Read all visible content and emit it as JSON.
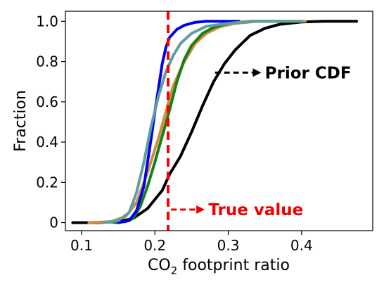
{
  "chart_data": {
    "type": "line",
    "title": "",
    "xlabel": {
      "prefix": "CO",
      "sub": "2",
      "suffix": " footprint ratio"
    },
    "ylabel": "Fraction",
    "xlim": [
      0.078,
      0.497
    ],
    "ylim": [
      -0.04,
      1.05
    ],
    "grid": false,
    "x_ticks": [
      {
        "value": 0.1,
        "label": "0.1"
      },
      {
        "value": 0.2,
        "label": "0.2"
      },
      {
        "value": 0.3,
        "label": "0.3"
      },
      {
        "value": 0.4,
        "label": "0.4"
      }
    ],
    "y_ticks": [
      {
        "value": 0.0,
        "label": "0"
      },
      {
        "value": 0.2,
        "label": "0.2"
      },
      {
        "value": 0.4,
        "label": "0.4"
      },
      {
        "value": 0.6,
        "label": "0.6"
      },
      {
        "value": 0.8,
        "label": "0.8"
      },
      {
        "value": 1.0,
        "label": "1.0"
      }
    ],
    "series": [
      {
        "color": "#000000",
        "points": [
          [
            0.088,
            0
          ],
          [
            0.12,
            0
          ],
          [
            0.15,
            0.005
          ],
          [
            0.17,
            0.02
          ],
          [
            0.19,
            0.07
          ],
          [
            0.21,
            0.16
          ],
          [
            0.22,
            0.24
          ],
          [
            0.235,
            0.33
          ],
          [
            0.25,
            0.45
          ],
          [
            0.265,
            0.58
          ],
          [
            0.28,
            0.7
          ],
          [
            0.295,
            0.79
          ],
          [
            0.31,
            0.86
          ],
          [
            0.33,
            0.93
          ],
          [
            0.35,
            0.965
          ],
          [
            0.37,
            0.985
          ],
          [
            0.4,
            0.997
          ],
          [
            0.43,
            1.0
          ],
          [
            0.475,
            1.0
          ]
        ]
      },
      {
        "color": "#d28a43",
        "points": [
          [
            0.11,
            0
          ],
          [
            0.14,
            0.005
          ],
          [
            0.16,
            0.03
          ],
          [
            0.175,
            0.1
          ],
          [
            0.19,
            0.25
          ],
          [
            0.205,
            0.42
          ],
          [
            0.215,
            0.55
          ],
          [
            0.225,
            0.68
          ],
          [
            0.24,
            0.8
          ],
          [
            0.255,
            0.89
          ],
          [
            0.27,
            0.94
          ],
          [
            0.29,
            0.975
          ],
          [
            0.31,
            0.99
          ],
          [
            0.34,
            1.0
          ],
          [
            0.4,
            1.0
          ],
          [
            0.405,
            1.0
          ]
        ]
      },
      {
        "color": "#128112",
        "points": [
          [
            0.145,
            0
          ],
          [
            0.16,
            0.005
          ],
          [
            0.17,
            0.02
          ],
          [
            0.18,
            0.08
          ],
          [
            0.19,
            0.18
          ],
          [
            0.2,
            0.3
          ],
          [
            0.21,
            0.43
          ],
          [
            0.22,
            0.56
          ],
          [
            0.23,
            0.7
          ],
          [
            0.24,
            0.81
          ],
          [
            0.25,
            0.88
          ],
          [
            0.265,
            0.94
          ],
          [
            0.28,
            0.97
          ],
          [
            0.3,
            0.99
          ],
          [
            0.33,
            1.0
          ],
          [
            0.37,
            1.0
          ]
        ]
      },
      {
        "color": "#0000ee",
        "points": [
          [
            0.15,
            0
          ],
          [
            0.165,
            0.01
          ],
          [
            0.175,
            0.06
          ],
          [
            0.185,
            0.18
          ],
          [
            0.19,
            0.3
          ],
          [
            0.195,
            0.42
          ],
          [
            0.2,
            0.55
          ],
          [
            0.205,
            0.67
          ],
          [
            0.21,
            0.79
          ],
          [
            0.215,
            0.87
          ],
          [
            0.22,
            0.92
          ],
          [
            0.23,
            0.96
          ],
          [
            0.24,
            0.98
          ],
          [
            0.255,
            0.995
          ],
          [
            0.27,
            1.0
          ],
          [
            0.315,
            1.0
          ]
        ]
      },
      {
        "color": "#5f9ea0",
        "points": [
          [
            0.13,
            0
          ],
          [
            0.15,
            0.01
          ],
          [
            0.165,
            0.05
          ],
          [
            0.175,
            0.15
          ],
          [
            0.185,
            0.3
          ],
          [
            0.195,
            0.48
          ],
          [
            0.205,
            0.63
          ],
          [
            0.215,
            0.75
          ],
          [
            0.225,
            0.83
          ],
          [
            0.235,
            0.89
          ],
          [
            0.25,
            0.94
          ],
          [
            0.27,
            0.975
          ],
          [
            0.3,
            0.99
          ],
          [
            0.33,
            1.0
          ],
          [
            0.38,
            1.0
          ],
          [
            0.4,
            1.0
          ]
        ]
      }
    ],
    "true_value": {
      "x": 0.218,
      "color": "#ff0000"
    },
    "annotations": [
      {
        "text": "Prior CDF",
        "color": "#000000",
        "arrow_from": [
          0.282,
          0.745
        ],
        "arrow_to": [
          0.345,
          0.745
        ],
        "text_at": [
          0.35,
          0.745
        ]
      },
      {
        "text": "True value",
        "color": "#ee0000",
        "arrow_from": [
          0.222,
          0.065
        ],
        "arrow_to": [
          0.268,
          0.065
        ],
        "text_at": [
          0.273,
          0.065
        ]
      }
    ]
  }
}
